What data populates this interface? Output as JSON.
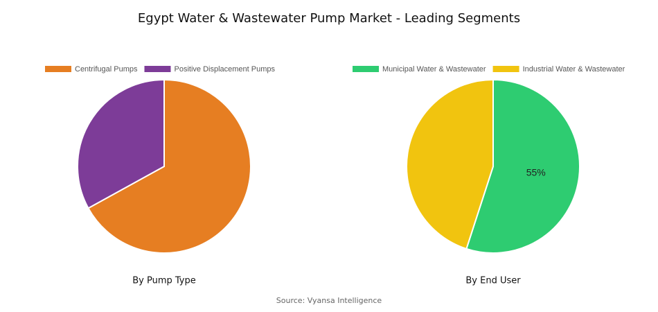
{
  "title": "Egypt Water & Wastewater Pump Market - Leading Segments",
  "source": "Source: Vyansa Intelligence",
  "chart_data": [
    {
      "type": "pie",
      "title": "By Pump Type",
      "categories": [
        "Centrifugal Pumps",
        "Positive Displacement Pumps"
      ],
      "values": [
        67,
        33
      ],
      "colors": [
        "#e67e22",
        "#7d3c98"
      ]
    },
    {
      "type": "pie",
      "title": "By End User",
      "categories": [
        "Municipal Water & Wastewater",
        "Industrial Water & Wastewater"
      ],
      "values": [
        55,
        45
      ],
      "value_labels": [
        "55%",
        null
      ],
      "colors": [
        "#2ecc71",
        "#f1c40f"
      ]
    }
  ]
}
